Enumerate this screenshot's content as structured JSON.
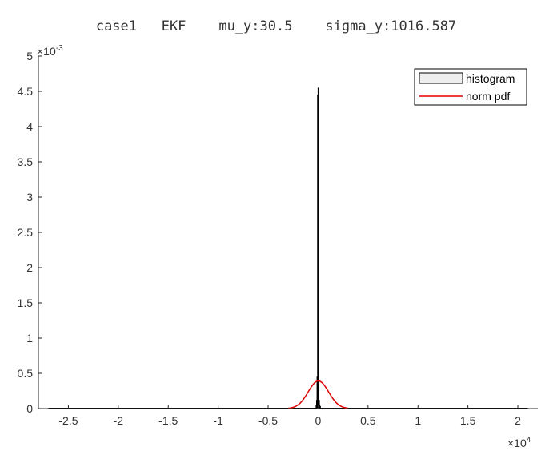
{
  "chart_data": {
    "type": "bar",
    "title": "case1   EKF    mu_y:30.5    sigma_y:1016.587",
    "xlabel": "",
    "ylabel": "",
    "x_multiplier": "×10",
    "x_multiplier_exp": "4",
    "y_multiplier": "×10",
    "y_multiplier_exp": "-3",
    "xlim": [
      -2.8,
      2.2
    ],
    "ylim": [
      0,
      5
    ],
    "x_ticks": [
      -2.5,
      -2,
      -1.5,
      -1,
      -0.5,
      0,
      0.5,
      1,
      1.5,
      2
    ],
    "x_tick_labels": [
      "-2.5",
      "-2",
      "-1.5",
      "-1",
      "-0.5",
      "0",
      "0.5",
      "1",
      "1.5",
      "2"
    ],
    "y_ticks": [
      0,
      0.5,
      1,
      1.5,
      2,
      2.5,
      3,
      3.5,
      4,
      4.5,
      5
    ],
    "y_tick_labels": [
      "0",
      "0.5",
      "1",
      "1.5",
      "2",
      "2.5",
      "3",
      "3.5",
      "4",
      "4.5",
      "5"
    ],
    "grid": false,
    "legend_position": "top-right",
    "series": [
      {
        "name": "histogram",
        "kind": "histogram",
        "color": "#000000",
        "face_color": "#eeeeee",
        "bins": [
          {
            "x": -0.02,
            "value": 0.05
          },
          {
            "x": -0.015,
            "value": 0.12
          },
          {
            "x": -0.01,
            "value": 0.45
          },
          {
            "x": -0.005,
            "value": 4.45
          },
          {
            "x": 0.0,
            "value": 4.55
          },
          {
            "x": 0.005,
            "value": 0.3
          },
          {
            "x": 0.01,
            "value": 0.12
          },
          {
            "x": 0.015,
            "value": 0.05
          },
          {
            "x": 0.02,
            "value": 0.03
          }
        ]
      },
      {
        "name": "norm pdf",
        "kind": "line",
        "color": "#e00000",
        "mu": 30.5,
        "sigma": 1016.587,
        "x_range": [
          -0.3,
          0.3
        ],
        "peak": 0.392
      }
    ]
  }
}
